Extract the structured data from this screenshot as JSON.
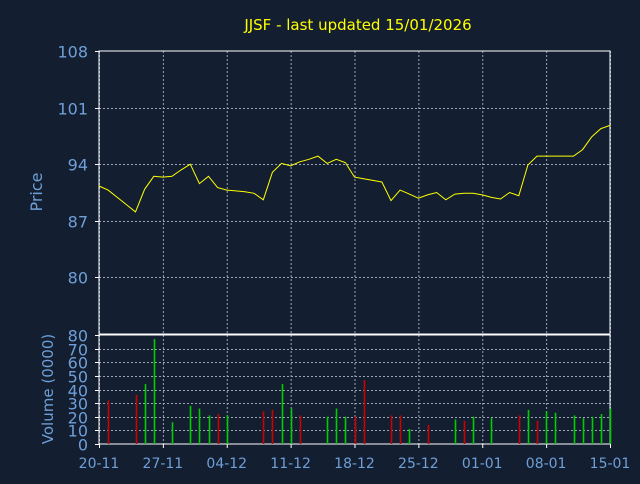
{
  "title": "JJSF - last updated 15/01/2026",
  "colors": {
    "background": "#131f30",
    "frame": "#ffffff",
    "grid": "#9aa6b4",
    "axis_text": "#6f9fd8",
    "title_text": "#ffff00",
    "price_line": "#ffff00",
    "volume_up": "#00cc00",
    "volume_down": "#cc0000"
  },
  "chart_data": [
    {
      "type": "line",
      "ylabel": "Price",
      "ylim": [
        73,
        108
      ],
      "yticks": [
        108,
        101,
        94,
        87,
        80
      ],
      "grid": true,
      "x_range": [
        0,
        56
      ],
      "series": [
        {
          "x": [
            0,
            1,
            2,
            3,
            4,
            5,
            6,
            7,
            8,
            9,
            10,
            11,
            12,
            13,
            14,
            15,
            16,
            17,
            18,
            19,
            20,
            21,
            22,
            23,
            24,
            25,
            26,
            27,
            28,
            29,
            30,
            31,
            32,
            33,
            34,
            35,
            36,
            37,
            38,
            39,
            40,
            41,
            42,
            43,
            44,
            45,
            46,
            47,
            48,
            49,
            50,
            51,
            52,
            53,
            54,
            55,
            56
          ],
          "values": [
            91.3,
            90.8,
            89.9,
            89.0,
            88.1,
            90.9,
            92.5,
            92.4,
            92.5,
            93.3,
            94.0,
            91.6,
            92.5,
            91.1,
            90.8,
            90.7,
            90.6,
            90.4,
            89.6,
            93.0,
            94.1,
            93.8,
            94.3,
            94.6,
            95.0,
            94.1,
            94.6,
            94.2,
            92.4,
            92.2,
            92.0,
            91.8,
            89.5,
            90.8,
            90.3,
            89.8,
            90.2,
            90.5,
            89.6,
            90.3,
            90.4,
            90.4,
            90.2,
            89.9,
            89.7,
            90.5,
            90.1,
            93.9,
            95.0,
            95.0,
            95.0,
            95.0,
            95.0,
            95.8,
            97.4,
            98.4,
            98.8
          ]
        }
      ]
    },
    {
      "type": "bar",
      "ylabel": "Volume (0000)",
      "ylim": [
        0,
        80
      ],
      "yticks": [
        80,
        70,
        60,
        50,
        40,
        30,
        20,
        10,
        0
      ],
      "grid": true,
      "x_range": [
        0,
        56
      ],
      "series": [
        {
          "x": [
            1,
            4,
            5,
            6,
            8,
            10,
            11,
            12,
            13,
            14,
            18,
            19,
            20,
            21,
            22,
            25,
            26,
            27,
            28,
            29,
            32,
            33,
            34,
            36,
            39,
            40,
            41,
            43,
            46,
            47,
            48,
            49,
            50,
            52,
            53,
            54,
            55,
            56
          ],
          "values": [
            32,
            36,
            44,
            77,
            16,
            28,
            26,
            21,
            22,
            21,
            24,
            25,
            44,
            26,
            21,
            20,
            26,
            20,
            20,
            47,
            21,
            21,
            11,
            14,
            18,
            17,
            20,
            19,
            21,
            25,
            17,
            24,
            23,
            21,
            19,
            20,
            22,
            26
          ],
          "direction": [
            "down",
            "down",
            "up",
            "up",
            "up",
            "up",
            "up",
            "up",
            "down",
            "up",
            "down",
            "down",
            "up",
            "up",
            "down",
            "up",
            "up",
            "up",
            "down",
            "down",
            "down",
            "down",
            "up",
            "down",
            "up",
            "down",
            "up",
            "up",
            "down",
            "up",
            "down",
            "up",
            "up",
            "up",
            "up",
            "up",
            "up",
            "up"
          ]
        }
      ]
    }
  ],
  "x_axis": {
    "tick_labels": [
      "20-11",
      "27-11",
      "04-12",
      "11-12",
      "18-12",
      "25-12",
      "01-01",
      "08-01",
      "15-01"
    ],
    "tick_positions": [
      0,
      7,
      14,
      21,
      28,
      35,
      42,
      49,
      56
    ]
  }
}
